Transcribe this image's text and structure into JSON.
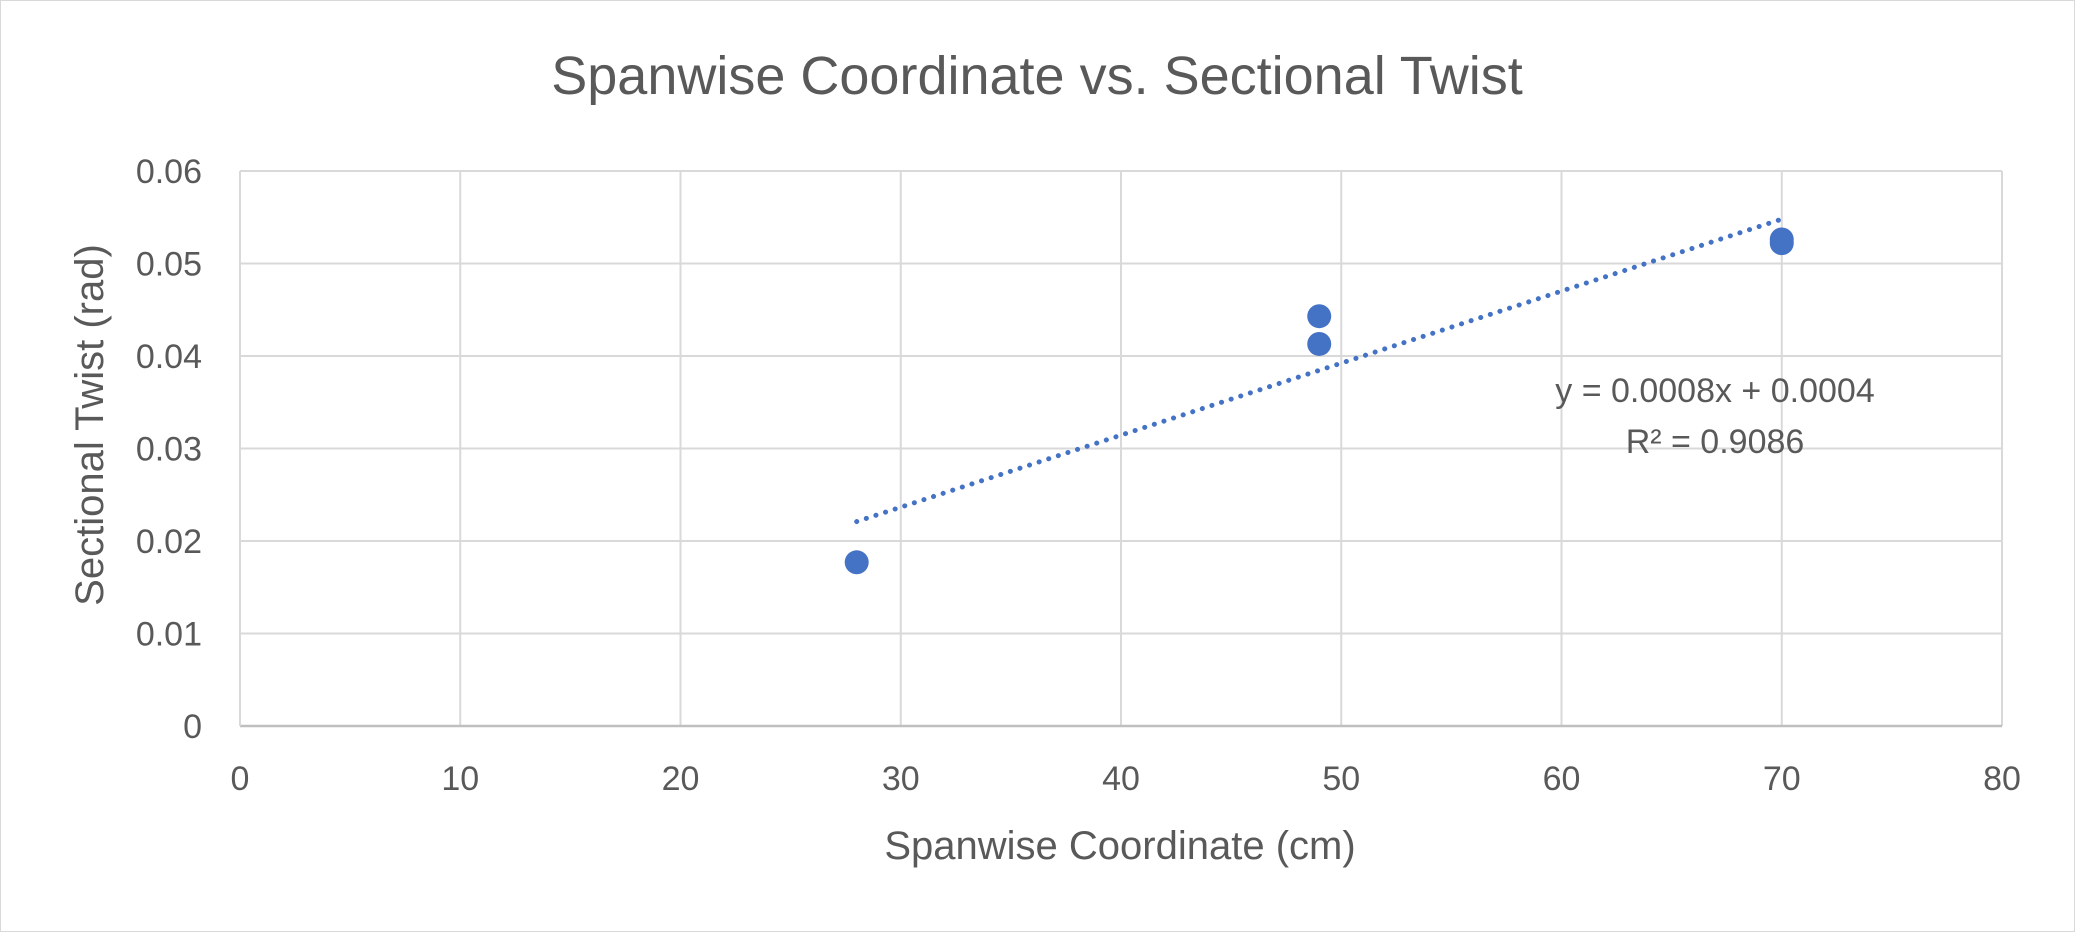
{
  "chart_data": {
    "type": "scatter",
    "title": "Spanwise Coordinate vs. Sectional Twist",
    "xlabel": "Spanwise Coordinate (cm)",
    "ylabel": "Sectional Twist (rad)",
    "xlim": [
      0,
      80
    ],
    "ylim": [
      0,
      0.06
    ],
    "xticks": [
      "0",
      "10",
      "20",
      "30",
      "40",
      "50",
      "60",
      "70",
      "80"
    ],
    "yticks": [
      "0",
      "0.01",
      "0.02",
      "0.03",
      "0.04",
      "0.05",
      "0.06"
    ],
    "grid": true,
    "series": [
      {
        "color": "#4472c4",
        "points": [
          {
            "x": 28,
            "y": 0.0177
          },
          {
            "x": 49,
            "y": 0.0443
          },
          {
            "x": 49,
            "y": 0.0413
          },
          {
            "x": 70,
            "y": 0.0526
          },
          {
            "x": 70,
            "y": 0.0522
          }
        ]
      }
    ],
    "trendline": {
      "type": "linear",
      "style": "dotted",
      "color": "#4472c4",
      "x_range": [
        28,
        70
      ],
      "y_range": [
        0.0221,
        0.0548
      ],
      "equation": "y = 0.0008x + 0.0004",
      "r_squared": "R² = 0.9086"
    }
  }
}
